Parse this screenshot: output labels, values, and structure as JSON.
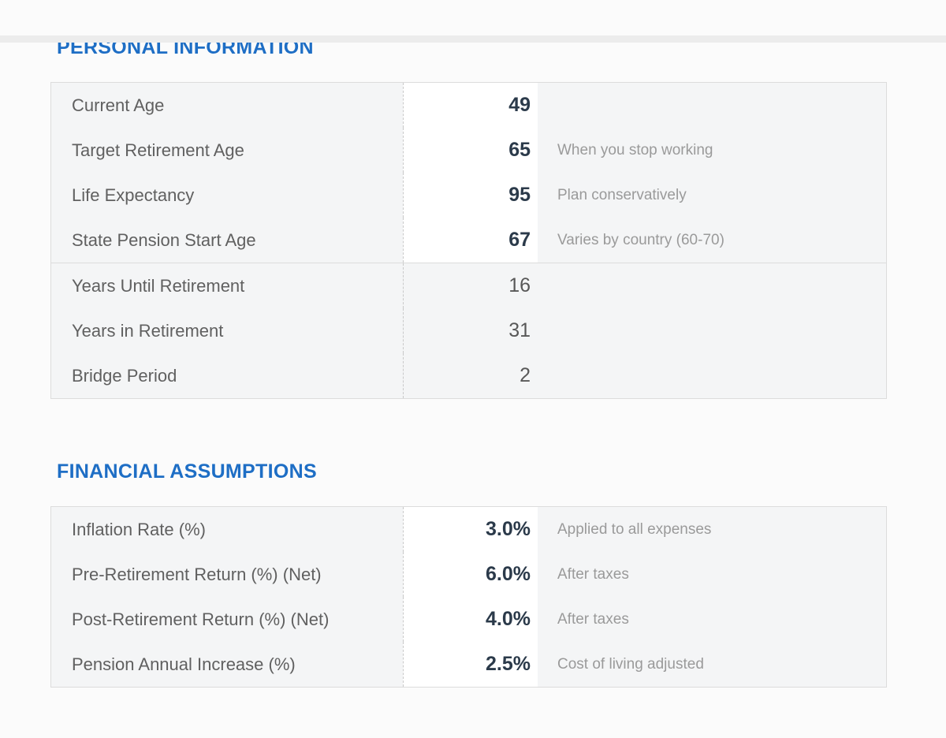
{
  "page": {
    "accent_color": "#1e6ec5",
    "table_background": "#f4f5f6",
    "editable_cell_background": "#ffffff",
    "editable_value_color": "#2b3a4a"
  },
  "sections": [
    {
      "title": "PERSONAL INFORMATION",
      "rows": [
        {
          "label": "Current Age",
          "value": "49",
          "note": ""
        },
        {
          "label": "Target Retirement Age",
          "value": "65",
          "note": "When you stop working"
        },
        {
          "label": "Life Expectancy",
          "value": "95",
          "note": "Plan conservatively"
        },
        {
          "label": "State Pension Start Age",
          "value": "67",
          "note": "Varies by country (60-70)"
        },
        {
          "label": "Years Until Retirement",
          "value": "16",
          "note": ""
        },
        {
          "label": "Years in Retirement",
          "value": "31",
          "note": ""
        },
        {
          "label": "Bridge Period",
          "value": "2",
          "note": ""
        }
      ]
    },
    {
      "title": "FINANCIAL ASSUMPTIONS",
      "rows": [
        {
          "label": "Inflation Rate (%)",
          "value": "3.0%",
          "note": "Applied to all expenses"
        },
        {
          "label": "Pre-Retirement Return (%) (Net)",
          "value": "6.0%",
          "note": "After taxes"
        },
        {
          "label": "Post-Retirement Return (%) (Net)",
          "value": "4.0%",
          "note": "After taxes"
        },
        {
          "label": "Pension Annual Increase (%)",
          "value": "2.5%",
          "note": "Cost of living adjusted"
        }
      ]
    }
  ]
}
